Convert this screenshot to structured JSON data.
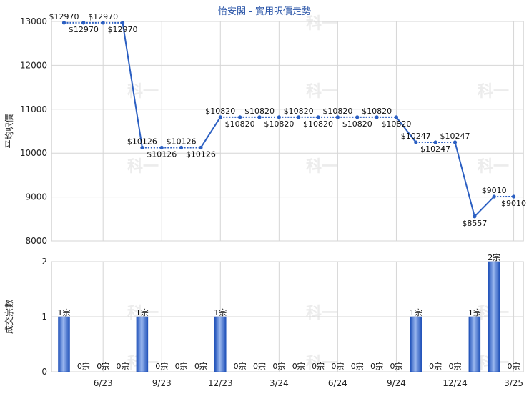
{
  "chart_data": [
    {
      "type": "line",
      "title": "怡安閣 - 實用呎價走勢",
      "xlabel": "",
      "ylabel": "平均呎價",
      "ylim": [
        8000,
        13000
      ],
      "yticks": [
        8000,
        9000,
        10000,
        11000,
        12000,
        13000
      ],
      "grid": true,
      "months": [
        "4/23",
        "5/23",
        "6/23",
        "7/23",
        "8/23",
        "9/23",
        "10/23",
        "11/23",
        "12/23",
        "1/24",
        "2/24",
        "3/24",
        "4/24",
        "5/24",
        "6/24",
        "7/24",
        "8/24",
        "9/24",
        "10/24",
        "11/24",
        "12/24",
        "1/25",
        "2/25",
        "3/25"
      ],
      "xtick_labels": [
        "6/23",
        "9/23",
        "12/23",
        "3/24",
        "6/24",
        "9/24",
        "12/24",
        "3/25"
      ],
      "series": [
        {
          "values": [
            12970,
            12970,
            12970,
            12970,
            10126,
            10126,
            10126,
            10126,
            10820,
            10820,
            10820,
            10820,
            10820,
            10820,
            10820,
            10820,
            10820,
            10820,
            10247,
            10247,
            10247,
            8557,
            9010,
            9010
          ],
          "labels": [
            "$12970",
            "$12970",
            "$12970",
            "$12970",
            "$10126",
            "$10126",
            "$10126",
            "$10126",
            "$10820",
            "$10820",
            "$10820",
            "$10820",
            "$10820",
            "$10820",
            "$10820",
            "$10820",
            "$10820",
            "$10820",
            "$10247",
            "$10247",
            "$10247",
            "$8557",
            "$9010",
            "$9010"
          ],
          "color": "#2b5fc2"
        }
      ]
    },
    {
      "type": "bar",
      "xlabel": "",
      "ylabel": "成交宗數",
      "ylim": [
        0,
        2
      ],
      "yticks": [
        0,
        1,
        2
      ],
      "grid": true,
      "months": [
        "4/23",
        "5/23",
        "6/23",
        "7/23",
        "8/23",
        "9/23",
        "10/23",
        "11/23",
        "12/23",
        "1/24",
        "2/24",
        "3/24",
        "4/24",
        "5/24",
        "6/24",
        "7/24",
        "8/24",
        "9/24",
        "10/24",
        "11/24",
        "12/24",
        "1/25",
        "2/25",
        "3/25"
      ],
      "values": [
        1,
        0,
        0,
        0,
        1,
        0,
        0,
        0,
        1,
        0,
        0,
        0,
        0,
        0,
        0,
        0,
        0,
        0,
        1,
        0,
        0,
        1,
        2,
        0
      ],
      "labels": [
        "1宗",
        "0宗",
        "0宗",
        "0宗",
        "1宗",
        "0宗",
        "0宗",
        "0宗",
        "1宗",
        "0宗",
        "0宗",
        "0宗",
        "0宗",
        "0宗",
        "0宗",
        "0宗",
        "0宗",
        "0宗",
        "1宗",
        "0宗",
        "0宗",
        "1宗",
        "2宗",
        "0宗"
      ],
      "color": "#3d6fd6"
    }
  ],
  "watermark": "科一"
}
